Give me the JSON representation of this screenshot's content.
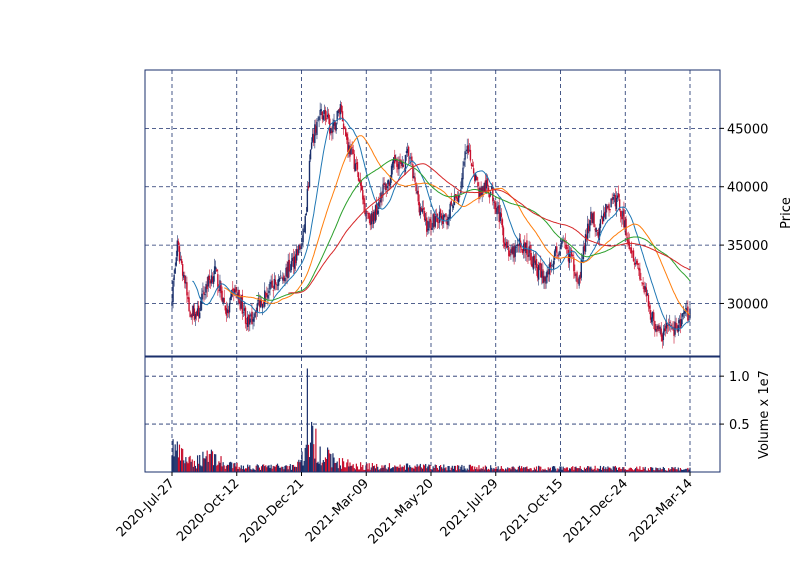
{
  "chart_data": {
    "type": "candlestick",
    "x_tick_labels": [
      "2020-Jul-27",
      "2020-Oct-12",
      "2020-Dec-21",
      "2021-Mar-09",
      "2021-May-20",
      "2021-Jul-29",
      "2021-Oct-15",
      "2021-Dec-24",
      "2022-Mar-14"
    ],
    "price_panel": {
      "ylabel": "Price",
      "yticks": [
        30000,
        35000,
        40000,
        45000
      ],
      "ylim": [
        25500,
        50000
      ]
    },
    "volume_panel": {
      "ylabel": "Volume x 1e7",
      "yticks": [
        0.5,
        1.0
      ],
      "ylim": [
        0,
        1.2
      ]
    },
    "grid": true,
    "candle_up_color": "#1a2f6b",
    "candle_down_color": "#c8102e",
    "moving_average_colors": [
      "#1f77b4",
      "#ff7f0e",
      "#2ca02c",
      "#d62728"
    ],
    "close_anchors": [
      {
        "d": 0,
        "v": 30800
      },
      {
        "d": 5,
        "v": 34800
      },
      {
        "d": 10,
        "v": 33000
      },
      {
        "d": 16,
        "v": 29500
      },
      {
        "d": 24,
        "v": 29000
      },
      {
        "d": 32,
        "v": 31500
      },
      {
        "d": 40,
        "v": 32800
      },
      {
        "d": 46,
        "v": 31000
      },
      {
        "d": 52,
        "v": 29000
      },
      {
        "d": 58,
        "v": 31200
      },
      {
        "d": 66,
        "v": 29800
      },
      {
        "d": 72,
        "v": 28000
      },
      {
        "d": 80,
        "v": 30000
      },
      {
        "d": 90,
        "v": 31000
      },
      {
        "d": 100,
        "v": 32000
      },
      {
        "d": 110,
        "v": 33000
      },
      {
        "d": 118,
        "v": 34500
      },
      {
        "d": 122,
        "v": 35000
      },
      {
        "d": 126,
        "v": 38000
      },
      {
        "d": 130,
        "v": 43000
      },
      {
        "d": 136,
        "v": 45500
      },
      {
        "d": 142,
        "v": 46500
      },
      {
        "d": 150,
        "v": 44500
      },
      {
        "d": 158,
        "v": 47000
      },
      {
        "d": 165,
        "v": 43500
      },
      {
        "d": 172,
        "v": 42000
      },
      {
        "d": 180,
        "v": 38500
      },
      {
        "d": 188,
        "v": 37000
      },
      {
        "d": 196,
        "v": 39500
      },
      {
        "d": 204,
        "v": 40500
      },
      {
        "d": 210,
        "v": 42500
      },
      {
        "d": 216,
        "v": 41500
      },
      {
        "d": 222,
        "v": 43000
      },
      {
        "d": 228,
        "v": 40000
      },
      {
        "d": 232,
        "v": 38500
      },
      {
        "d": 240,
        "v": 36500
      },
      {
        "d": 248,
        "v": 37500
      },
      {
        "d": 256,
        "v": 37000
      },
      {
        "d": 264,
        "v": 38500
      },
      {
        "d": 270,
        "v": 39500
      },
      {
        "d": 276,
        "v": 43000
      },
      {
        "d": 282,
        "v": 42000
      },
      {
        "d": 288,
        "v": 39500
      },
      {
        "d": 294,
        "v": 40000
      },
      {
        "d": 300,
        "v": 39500
      },
      {
        "d": 306,
        "v": 38000
      },
      {
        "d": 312,
        "v": 35500
      },
      {
        "d": 318,
        "v": 34000
      },
      {
        "d": 326,
        "v": 35000
      },
      {
        "d": 334,
        "v": 34500
      },
      {
        "d": 342,
        "v": 33000
      },
      {
        "d": 350,
        "v": 32000
      },
      {
        "d": 358,
        "v": 34000
      },
      {
        "d": 366,
        "v": 35000
      },
      {
        "d": 374,
        "v": 34000
      },
      {
        "d": 382,
        "v": 32000
      },
      {
        "d": 388,
        "v": 35500
      },
      {
        "d": 394,
        "v": 37500
      },
      {
        "d": 400,
        "v": 36000
      },
      {
        "d": 406,
        "v": 38000
      },
      {
        "d": 412,
        "v": 38500
      },
      {
        "d": 418,
        "v": 39000
      },
      {
        "d": 424,
        "v": 37000
      },
      {
        "d": 430,
        "v": 35000
      },
      {
        "d": 436,
        "v": 33500
      },
      {
        "d": 442,
        "v": 31500
      },
      {
        "d": 448,
        "v": 29500
      },
      {
        "d": 454,
        "v": 28000
      },
      {
        "d": 460,
        "v": 27200
      },
      {
        "d": 466,
        "v": 28200
      },
      {
        "d": 472,
        "v": 27800
      },
      {
        "d": 478,
        "v": 28500
      },
      {
        "d": 484,
        "v": 29200
      },
      {
        "d": 486,
        "v": 29000
      }
    ],
    "volume_anchors": [
      {
        "d": 0,
        "v": 0.27
      },
      {
        "d": 8,
        "v": 0.17
      },
      {
        "d": 20,
        "v": 0.08
      },
      {
        "d": 34,
        "v": 0.2
      },
      {
        "d": 50,
        "v": 0.07
      },
      {
        "d": 80,
        "v": 0.05
      },
      {
        "d": 115,
        "v": 0.06
      },
      {
        "d": 126,
        "v": 0.2
      },
      {
        "d": 130,
        "v": 0.35
      },
      {
        "d": 140,
        "v": 0.2
      },
      {
        "d": 155,
        "v": 0.1
      },
      {
        "d": 180,
        "v": 0.06
      },
      {
        "d": 250,
        "v": 0.05
      },
      {
        "d": 340,
        "v": 0.04
      },
      {
        "d": 420,
        "v": 0.04
      },
      {
        "d": 486,
        "v": 0.03
      }
    ],
    "volume_spike": {
      "d": 127,
      "v": 1.08
    }
  }
}
